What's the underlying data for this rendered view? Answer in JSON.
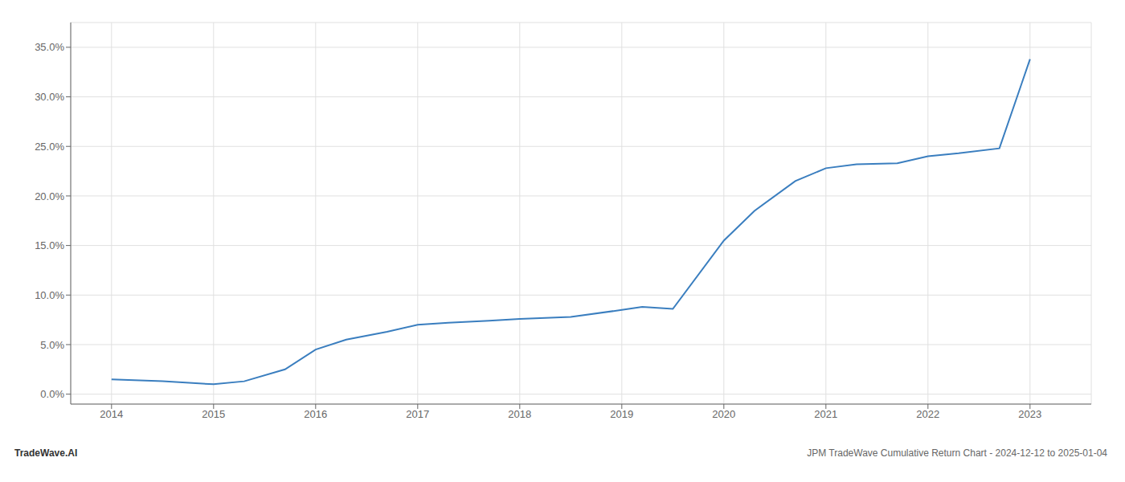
{
  "chart_data": {
    "type": "line",
    "annotations": [
      "TradeWave.AI",
      "JPM TradeWave Cumulative Return Chart - 2024-12-12 to 2025-01-04"
    ],
    "x": [
      2014.0,
      2014.5,
      2015.0,
      2015.3,
      2015.7,
      2016.0,
      2016.3,
      2016.7,
      2017.0,
      2017.3,
      2017.7,
      2018.0,
      2018.5,
      2019.0,
      2019.2,
      2019.5,
      2020.0,
      2020.3,
      2020.7,
      2021.0,
      2021.3,
      2021.7,
      2022.0,
      2022.3,
      2022.7,
      2023.0
    ],
    "values": [
      0.015,
      0.013,
      0.01,
      0.013,
      0.025,
      0.045,
      0.055,
      0.063,
      0.07,
      0.072,
      0.074,
      0.076,
      0.078,
      0.085,
      0.088,
      0.086,
      0.155,
      0.185,
      0.215,
      0.228,
      0.232,
      0.233,
      0.24,
      0.243,
      0.248,
      0.338
    ],
    "color": "#3a7ebf",
    "xlim": [
      2013.6,
      2023.6
    ],
    "xticks": [
      2014,
      2015,
      2016,
      2017,
      2018,
      2019,
      2020,
      2021,
      2022,
      2023
    ],
    "ylim": [
      -0.01,
      0.375
    ],
    "yticks": [
      {
        "value": 0.0,
        "label": "0.0%"
      },
      {
        "value": 0.05,
        "label": "5.0%"
      },
      {
        "value": 0.1,
        "label": "10.0%"
      },
      {
        "value": 0.15,
        "label": "15.0%"
      },
      {
        "value": 0.2,
        "label": "20.0%"
      },
      {
        "value": 0.25,
        "label": "25.0%"
      },
      {
        "value": 0.3,
        "label": "30.0%"
      },
      {
        "value": 0.35,
        "label": "35.0%"
      }
    ],
    "grid": true
  }
}
